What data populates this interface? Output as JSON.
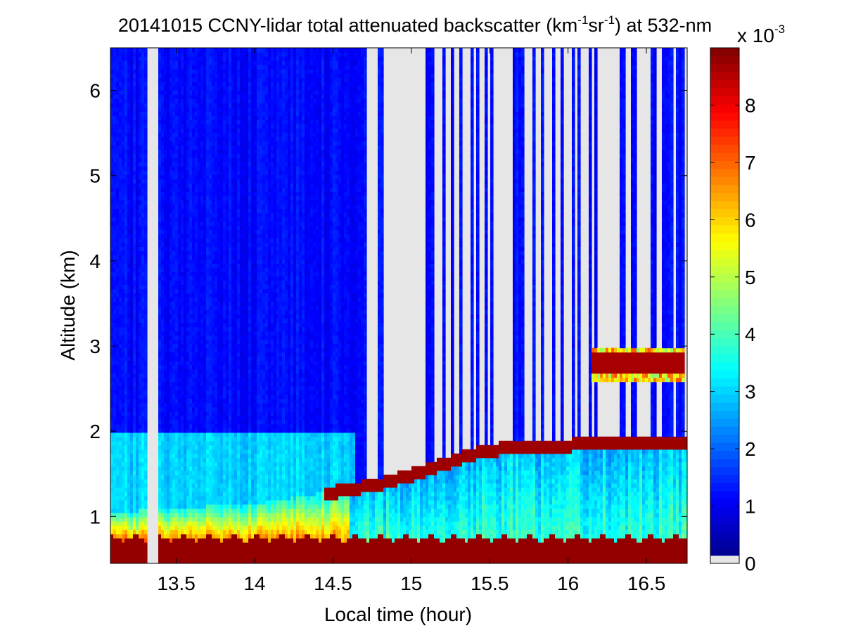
{
  "chart_data": {
    "type": "heatmap",
    "title": {
      "prefix": "20141015 CCNY-lidar total attenuated backscatter (km",
      "sup1": "-1",
      "mid": "sr",
      "sup2": "-1",
      "suffix": ") at 532-nm"
    },
    "xlabel": "Local time (hour)",
    "ylabel": "Altitude (km)",
    "xlim": [
      13.08,
      16.76
    ],
    "ylim": [
      0.45,
      6.5
    ],
    "xticks": [
      13.5,
      14,
      14.5,
      15,
      15.5,
      16,
      16.5
    ],
    "xtick_labels": [
      "13.5",
      "14",
      "14.5",
      "15",
      "15.5",
      "16",
      "16.5"
    ],
    "yticks": [
      1,
      2,
      3,
      4,
      5,
      6
    ],
    "ytick_labels": [
      "1",
      "2",
      "3",
      "4",
      "5",
      "6"
    ],
    "colorbar": {
      "range": [
        0,
        0.009
      ],
      "ticks": [
        0,
        1,
        2,
        3,
        4,
        5,
        6,
        7,
        8
      ],
      "tick_labels": [
        "0",
        "1",
        "2",
        "3",
        "4",
        "5",
        "6",
        "7",
        "8"
      ],
      "multiplier_base": "x 10",
      "multiplier_exp": "-3",
      "colormap": "jet",
      "zero_color": "#e6e6e6"
    },
    "features": {
      "boundary_layer_top_km": [
        {
          "t": 13.1,
          "z": 1.05
        },
        {
          "t": 13.5,
          "z": 1.1
        },
        {
          "t": 14.0,
          "z": 1.15
        },
        {
          "t": 14.5,
          "z": 1.3
        },
        {
          "t": 14.8,
          "z": 1.4
        },
        {
          "t": 15.0,
          "z": 1.5
        },
        {
          "t": 15.4,
          "z": 1.75
        },
        {
          "t": 15.7,
          "z": 1.85
        },
        {
          "t": 16.0,
          "z": 1.85
        },
        {
          "t": 16.3,
          "z": 1.9
        }
      ],
      "elevated_cloud_km": {
        "t_start": 16.15,
        "t_end": 16.75,
        "z_bottom": 2.6,
        "z_top": 3.0
      },
      "no_data_gap_hours": [
        13.32,
        13.38
      ],
      "ground_layer_top_km": 0.75
    }
  }
}
